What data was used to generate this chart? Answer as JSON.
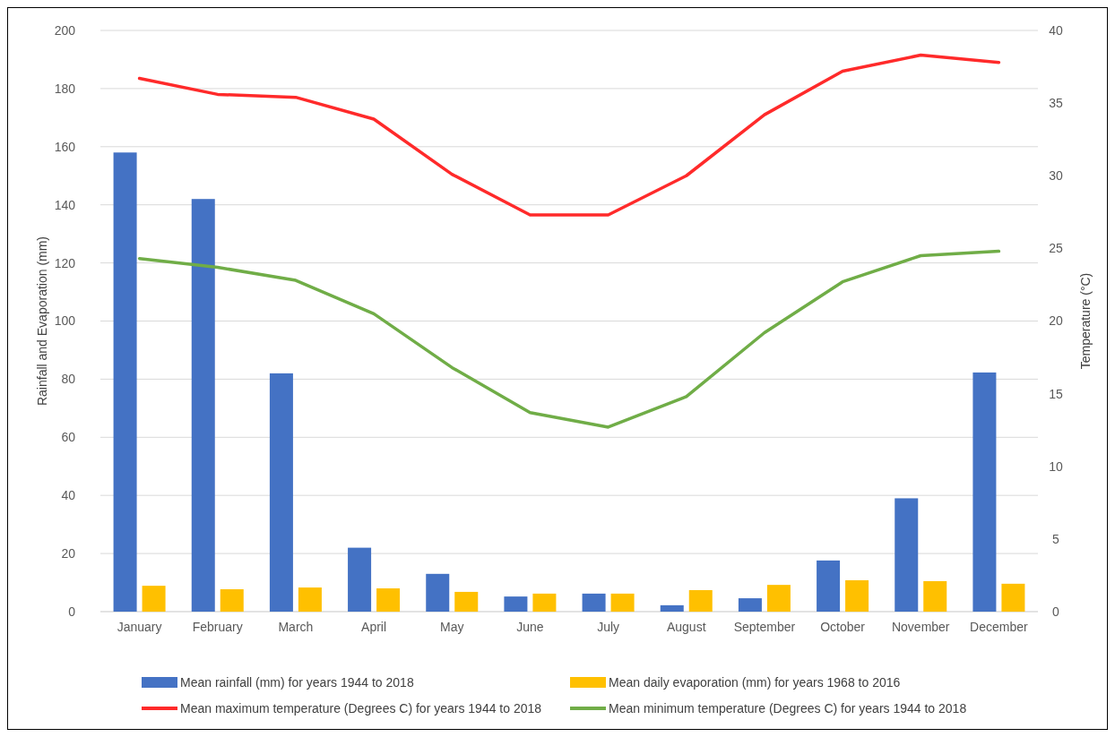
{
  "chart_data": {
    "type": "bar",
    "ylabel": "Rainfall and Evaporation (mm)",
    "y2label": "Temperature (°C)",
    "categories": [
      "January",
      "February",
      "March",
      "April",
      "May",
      "June",
      "July",
      "August",
      "September",
      "October",
      "November",
      "December"
    ],
    "series": [
      {
        "name": "Mean rainfall (mm) for years 1944 to 2018",
        "color": "#4472c4",
        "values": [
          158,
          142,
          82,
          22,
          13,
          5.2,
          6.2,
          2.2,
          4.6,
          17.6,
          39,
          82.3
        ]
      },
      {
        "name": "Mean daily evaporation (mm) for years 1968 to 2016",
        "color": "#ffc000",
        "values": [
          8.9,
          7.7,
          8.3,
          8,
          6.8,
          6.2,
          6.2,
          7.4,
          9.2,
          10.8,
          10.5,
          9.6
        ]
      },
      {
        "name": "Mean maximum temperature (Degrees C) for years 1944 to 2018",
        "color": "#ff2a2a",
        "type": "line",
        "axis": "y2",
        "values": [
          36.7,
          35.6,
          35.4,
          33.9,
          30.1,
          27.3,
          27.3,
          30,
          34.2,
          37.2,
          38.3,
          37.8
        ]
      },
      {
        "name": "Mean minimum temperature (Degrees C) for years 1944 to 2018",
        "color": "#70ad47",
        "type": "line",
        "axis": "y2",
        "values": [
          24.3,
          23.7,
          22.8,
          20.5,
          16.8,
          13.7,
          12.7,
          14.8,
          19.2,
          22.7,
          24.5,
          24.8
        ]
      }
    ],
    "ylim": [
      0,
      200
    ],
    "yticks": [
      0,
      20,
      40,
      60,
      80,
      100,
      120,
      140,
      160,
      180,
      200
    ],
    "y2lim": [
      0,
      40
    ],
    "y2ticks": [
      0,
      5,
      10,
      15,
      20,
      25,
      30,
      35,
      40
    ],
    "grid": "y",
    "legend": "bottom",
    "marker": "none",
    "line_style": "solid"
  }
}
